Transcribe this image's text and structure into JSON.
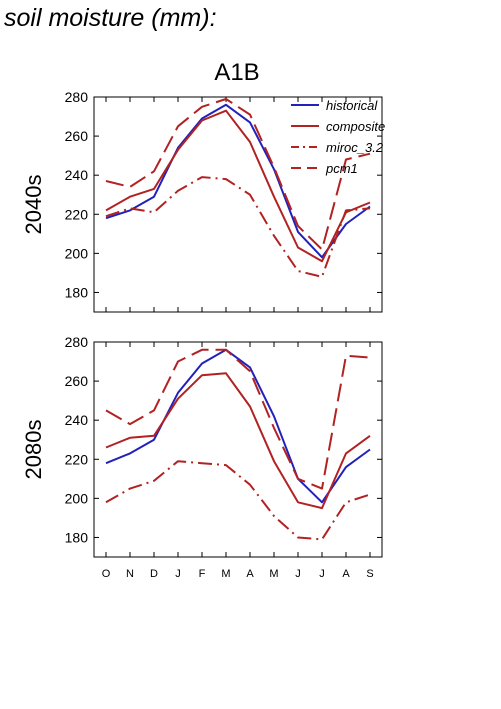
{
  "page_title": "soil moisture (mm):",
  "chart_data": {
    "type": "line",
    "scenario": "A1B",
    "categories": [
      "O",
      "N",
      "D",
      "J",
      "F",
      "M",
      "A",
      "M",
      "J",
      "J",
      "A",
      "S"
    ],
    "ylim": [
      170,
      280
    ],
    "yticks": [
      180,
      200,
      220,
      240,
      260,
      280
    ],
    "grid": false,
    "legend_position": "top-right",
    "legend": [
      {
        "name": "historical",
        "color": "#2222bb",
        "dash": "solid"
      },
      {
        "name": "composite",
        "color": "#b22222",
        "dash": "solid"
      },
      {
        "name": "miroc_3.2",
        "color": "#b22222",
        "dash": "dashdot"
      },
      {
        "name": "pcm1",
        "color": "#b22222",
        "dash": "dash"
      }
    ],
    "panels": [
      {
        "label": "2040s",
        "series": [
          {
            "name": "historical",
            "values": [
              218,
              222,
              229,
              254,
              269,
              276,
              267,
              243,
              211,
              198,
              215,
              224
            ]
          },
          {
            "name": "composite",
            "values": [
              222,
              229,
              233,
              253,
              268,
              273,
              257,
              229,
              203,
              196,
              221,
              226
            ]
          },
          {
            "name": "miroc_3.2",
            "values": [
              219,
              223,
              221,
              232,
              239,
              238,
              230,
              209,
              191,
              188,
              222,
              223
            ]
          },
          {
            "name": "pcm1",
            "values": [
              237,
              234,
              242,
              265,
              275,
              279,
              271,
              244,
              214,
              202,
              248,
              251
            ]
          }
        ]
      },
      {
        "label": "2080s",
        "series": [
          {
            "name": "historical",
            "values": [
              218,
              223,
              230,
              254,
              269,
              276,
              267,
              242,
              210,
              198,
              216,
              225
            ]
          },
          {
            "name": "composite",
            "values": [
              226,
              231,
              232,
              251,
              263,
              264,
              247,
              219,
              198,
              195,
              223,
              232
            ]
          },
          {
            "name": "miroc_3.2",
            "values": [
              198,
              205,
              209,
              219,
              218,
              217,
              207,
              191,
              180,
              179,
              198,
              202
            ]
          },
          {
            "name": "pcm1",
            "values": [
              245,
              238,
              245,
              270,
              276,
              276,
              265,
              236,
              210,
              205,
              273,
              272
            ]
          }
        ]
      }
    ]
  }
}
